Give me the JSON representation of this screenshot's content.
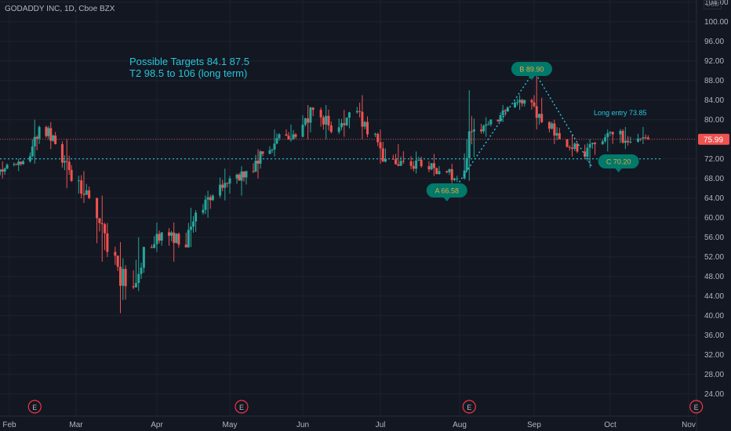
{
  "header": {
    "symbol_line": "GODADDY INC, 1D, Cboe BZX",
    "currency": "USD"
  },
  "annotations": {
    "targets_line1": "Possible Targets  84.1  87.5",
    "targets_line2": "T2 98.5 to 106 (long term)",
    "long_entry": "Long entry  73.85",
    "label_a": "A 66.58",
    "label_b": "B 89.90",
    "label_c": "C 70.20",
    "earnings_marker": "E"
  },
  "colors": {
    "background": "#131722",
    "grid": "#1e222d",
    "up": "#26a69a",
    "down": "#ef5350",
    "annotation": "#26c6da",
    "label_bg": "#00796b",
    "price_badge": "#ef5350"
  },
  "chart_data": {
    "type": "candlestick",
    "x_axis_labels": [
      "Feb",
      "Mar",
      "Apr",
      "May",
      "Jun",
      "Jul",
      "Aug",
      "Sep",
      "Oct",
      "Nov"
    ],
    "y_ticks": [
      24,
      28,
      32,
      36,
      40,
      44,
      48,
      52,
      56,
      60,
      64,
      68,
      72,
      76,
      80,
      84,
      88,
      92,
      96,
      100,
      104
    ],
    "ylim": [
      22,
      105
    ],
    "last_price": "75.99",
    "support_level": 72.0,
    "abc_pattern": [
      {
        "point": "A",
        "date": "2020-07-31",
        "value": 66.58
      },
      {
        "point": "B",
        "date": "2020-09-01",
        "value": 89.9
      },
      {
        "point": "C",
        "date": "2020-09-24",
        "value": 70.2
      }
    ],
    "earnings_dates": [
      "2020-02-12",
      "2020-05-06",
      "2020-08-05",
      "2020-11-04"
    ],
    "long_entry": 73.85,
    "ohlc_weekly": [
      {
        "date": "2020-01-27",
        "o": 69.0,
        "h": 71.5,
        "l": 68.0,
        "c": 70.8
      },
      {
        "date": "2020-02-03",
        "o": 70.8,
        "h": 72.0,
        "l": 69.5,
        "c": 71.5
      },
      {
        "date": "2020-02-10",
        "o": 71.5,
        "h": 80.0,
        "l": 71.0,
        "c": 78.5
      },
      {
        "date": "2020-02-17",
        "o": 78.5,
        "h": 79.5,
        "l": 74.0,
        "c": 75.0
      },
      {
        "date": "2020-02-24",
        "o": 75.0,
        "h": 76.0,
        "l": 66.0,
        "c": 67.5
      },
      {
        "date": "2020-03-02",
        "o": 67.5,
        "h": 69.5,
        "l": 63.0,
        "c": 64.0
      },
      {
        "date": "2020-03-09",
        "o": 64.0,
        "h": 64.5,
        "l": 51.0,
        "c": 53.0
      },
      {
        "date": "2020-03-16",
        "o": 53.0,
        "h": 55.0,
        "l": 40.5,
        "c": 46.0
      },
      {
        "date": "2020-03-23",
        "o": 46.0,
        "h": 56.0,
        "l": 45.0,
        "c": 54.0
      },
      {
        "date": "2020-03-30",
        "o": 54.0,
        "h": 59.0,
        "l": 53.0,
        "c": 57.0
      },
      {
        "date": "2020-04-06",
        "o": 57.0,
        "h": 59.0,
        "l": 51.0,
        "c": 54.5
      },
      {
        "date": "2020-04-13",
        "o": 54.5,
        "h": 62.0,
        "l": 54.0,
        "c": 61.0
      },
      {
        "date": "2020-04-20",
        "o": 61.0,
        "h": 65.5,
        "l": 60.0,
        "c": 64.5
      },
      {
        "date": "2020-04-27",
        "o": 64.5,
        "h": 70.0,
        "l": 63.5,
        "c": 68.0
      },
      {
        "date": "2020-05-04",
        "o": 68.0,
        "h": 70.5,
        "l": 64.5,
        "c": 69.5
      },
      {
        "date": "2020-05-11",
        "o": 69.5,
        "h": 74.0,
        "l": 68.0,
        "c": 73.0
      },
      {
        "date": "2020-05-18",
        "o": 73.0,
        "h": 78.0,
        "l": 72.5,
        "c": 77.0
      },
      {
        "date": "2020-05-25",
        "o": 77.0,
        "h": 79.0,
        "l": 75.5,
        "c": 76.5
      },
      {
        "date": "2020-06-01",
        "o": 76.5,
        "h": 83.0,
        "l": 76.0,
        "c": 82.0
      },
      {
        "date": "2020-06-08",
        "o": 82.0,
        "h": 83.0,
        "l": 76.0,
        "c": 77.5
      },
      {
        "date": "2020-06-15",
        "o": 77.5,
        "h": 82.0,
        "l": 76.5,
        "c": 81.5
      },
      {
        "date": "2020-06-22",
        "o": 81.5,
        "h": 85.0,
        "l": 76.0,
        "c": 77.0
      },
      {
        "date": "2020-06-29",
        "o": 77.0,
        "h": 78.0,
        "l": 71.0,
        "c": 72.0
      },
      {
        "date": "2020-07-06",
        "o": 72.0,
        "h": 75.0,
        "l": 70.5,
        "c": 71.5
      },
      {
        "date": "2020-07-13",
        "o": 71.5,
        "h": 73.5,
        "l": 69.0,
        "c": 70.5
      },
      {
        "date": "2020-07-20",
        "o": 70.5,
        "h": 73.0,
        "l": 68.5,
        "c": 69.5
      },
      {
        "date": "2020-07-27",
        "o": 69.5,
        "h": 71.0,
        "l": 66.5,
        "c": 68.0
      },
      {
        "date": "2020-08-03",
        "o": 68.0,
        "h": 86.0,
        "l": 67.5,
        "c": 78.0
      },
      {
        "date": "2020-08-10",
        "o": 78.0,
        "h": 80.5,
        "l": 76.5,
        "c": 80.0
      },
      {
        "date": "2020-08-17",
        "o": 80.0,
        "h": 83.0,
        "l": 79.5,
        "c": 82.5
      },
      {
        "date": "2020-08-24",
        "o": 82.5,
        "h": 85.0,
        "l": 82.0,
        "c": 84.0
      },
      {
        "date": "2020-08-31",
        "o": 84.0,
        "h": 90.0,
        "l": 78.0,
        "c": 79.5
      },
      {
        "date": "2020-09-07",
        "o": 79.5,
        "h": 80.0,
        "l": 75.0,
        "c": 76.0
      },
      {
        "date": "2020-09-14",
        "o": 76.0,
        "h": 77.0,
        "l": 72.5,
        "c": 73.5
      },
      {
        "date": "2020-09-21",
        "o": 73.5,
        "h": 76.0,
        "l": 70.2,
        "c": 75.0
      },
      {
        "date": "2020-09-28",
        "o": 75.0,
        "h": 78.0,
        "l": 73.5,
        "c": 77.0
      },
      {
        "date": "2020-10-05",
        "o": 77.0,
        "h": 78.5,
        "l": 74.0,
        "c": 75.5
      },
      {
        "date": "2020-10-12",
        "o": 75.5,
        "h": 78.5,
        "l": 75.0,
        "c": 76.0
      }
    ]
  }
}
